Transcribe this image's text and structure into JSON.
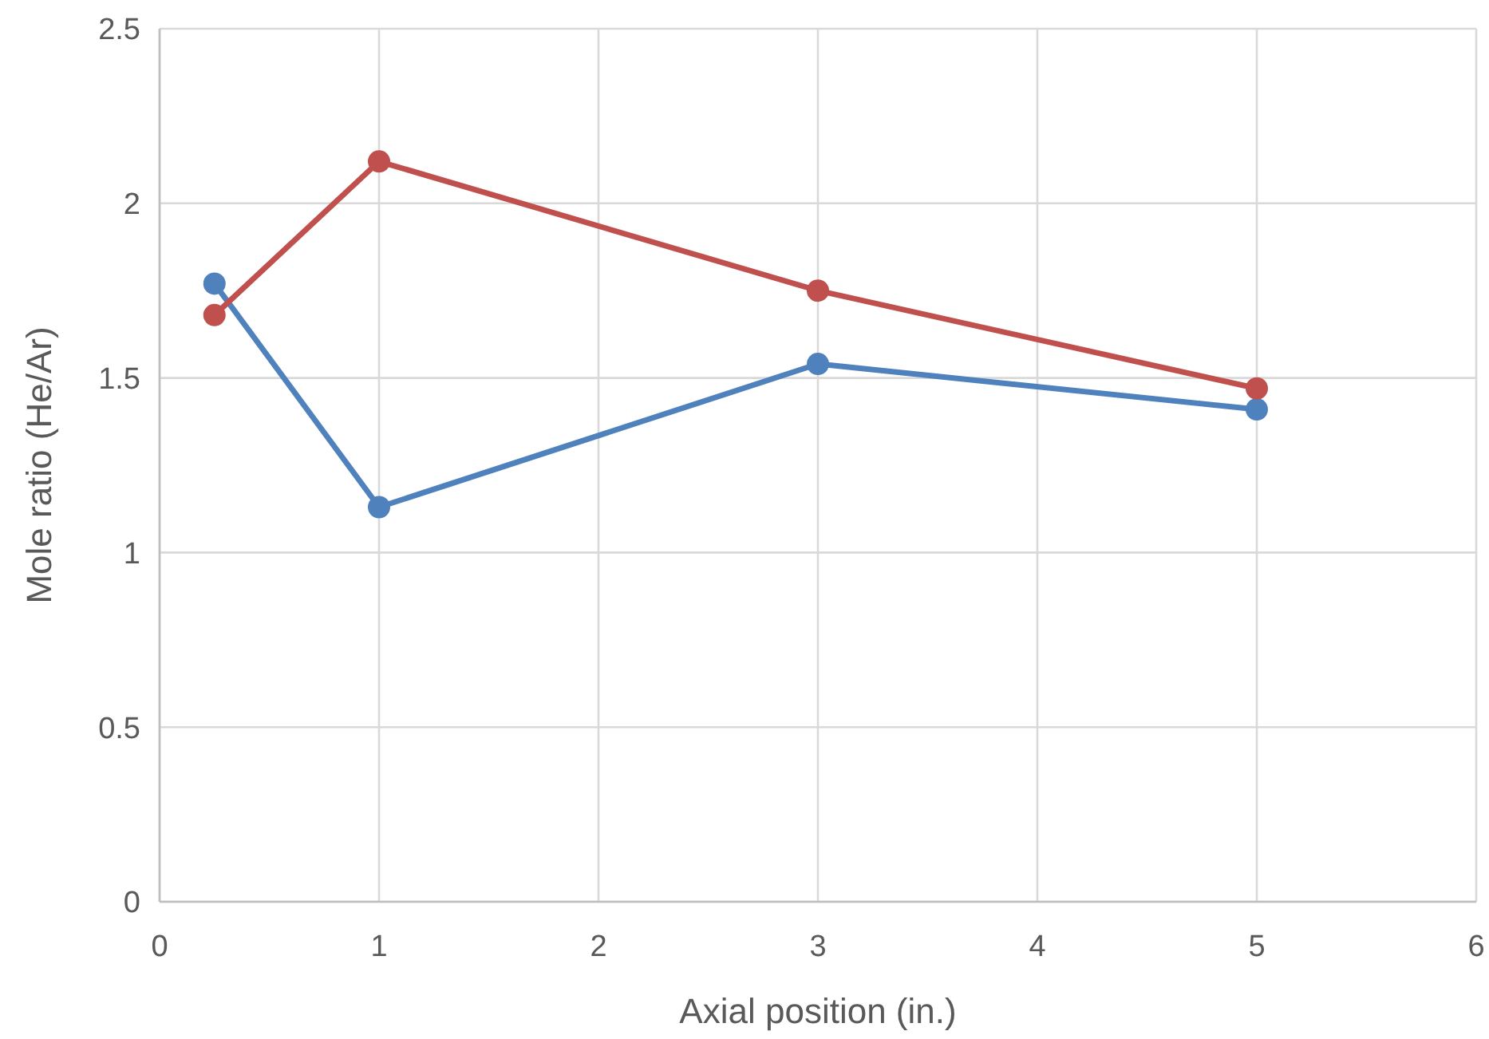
{
  "chart_data": {
    "type": "line",
    "xlabel": "Axial position (in.)",
    "ylabel": "Mole ratio (He/Ar)",
    "x": [
      0.25,
      1,
      3,
      5
    ],
    "series": [
      {
        "color": "#4f81bd",
        "values": [
          1.77,
          1.13,
          1.54,
          1.41
        ]
      },
      {
        "color": "#c0504d",
        "values": [
          1.68,
          2.12,
          1.75,
          1.47
        ]
      }
    ],
    "xlim": [
      0,
      6
    ],
    "xticks": [
      0,
      1,
      2,
      3,
      4,
      5,
      6
    ],
    "ylim": [
      0,
      2.5
    ],
    "yticks": [
      0,
      0.5,
      1,
      1.5,
      2,
      2.5
    ],
    "grid": true,
    "marker": "circle",
    "line_style": "solid"
  }
}
